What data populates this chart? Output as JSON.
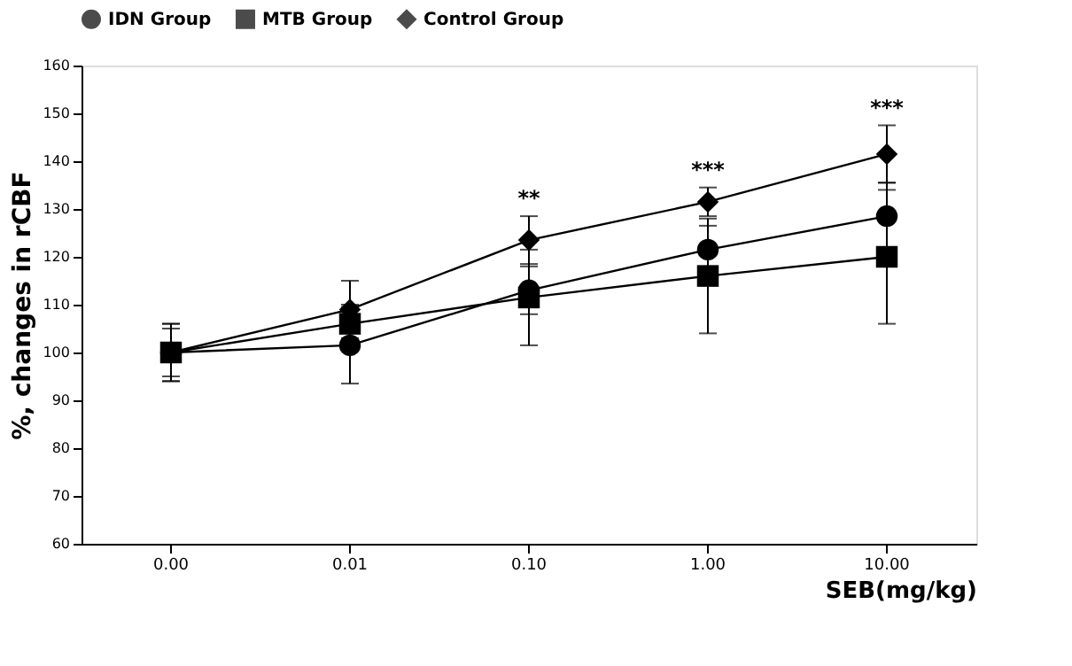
{
  "chart_data": {
    "type": "line",
    "xlabel": "SEB(mg/kg)",
    "ylabel": "%, changes in rCBF",
    "categories": [
      "0.00",
      "0.01",
      "0.10",
      "1.00",
      "10.00"
    ],
    "series": [
      {
        "name": "IDN Group",
        "color": "#000000",
        "marker": "circle",
        "values": [
          100,
          101.5,
          113,
          121.5,
          128.5
        ],
        "errors": [
          6,
          8,
          5,
          5,
          7
        ]
      },
      {
        "name": "MTB Group",
        "color": "#000000",
        "marker": "square",
        "values": [
          100,
          106,
          111.5,
          116,
          120
        ],
        "errors": [
          5,
          4,
          10,
          12,
          14
        ]
      },
      {
        "name": "Control Group",
        "color": "#000000",
        "marker": "diamond",
        "values": [
          100,
          109,
          123.5,
          131.5,
          141.5
        ],
        "errors": [
          6,
          6,
          5,
          3,
          6
        ]
      }
    ],
    "ylim": [
      60,
      160
    ],
    "yticks": [
      60,
      70,
      80,
      90,
      100,
      110,
      120,
      130,
      140,
      150,
      160
    ],
    "annotations": [
      {
        "text": "**",
        "x": "0.10",
        "y": 128.5
      },
      {
        "text": "***",
        "x": "1.00",
        "y": 134.5
      },
      {
        "text": "***",
        "x": "10.00",
        "y": 147.5
      }
    ],
    "grid": false,
    "legend": "top",
    "line_style": "solid"
  }
}
